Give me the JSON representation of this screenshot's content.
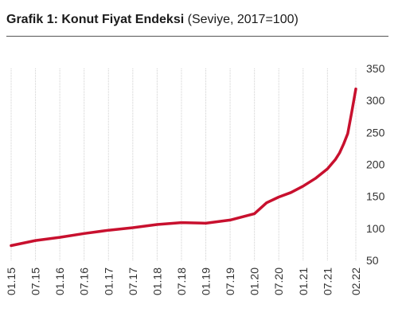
{
  "title": {
    "bold": "Grafik 1: Konut Fiyat Endeksi",
    "normal": "(Seviye, 2017=100)"
  },
  "colors": {
    "line": "#c8102e",
    "grid": "#cfcfcf",
    "rule": "#555555"
  },
  "chart_data": {
    "type": "line",
    "title": "Grafik 1: Konut Fiyat Endeksi (Seviye, 2017=100)",
    "xlabel": "",
    "ylabel": "",
    "y_axis_side": "right",
    "ylim": [
      50,
      350
    ],
    "yticks": [
      50,
      100,
      150,
      200,
      250,
      300,
      350
    ],
    "xticks": [
      "01.15",
      "07.15",
      "01.16",
      "07.16",
      "01.17",
      "07.17",
      "01.18",
      "07.18",
      "01.19",
      "07.19",
      "01.20",
      "07.20",
      "01.21",
      "07.21",
      "02.22"
    ],
    "grid": "vertical",
    "legend": "none",
    "series": [
      {
        "x": [
          "01.15",
          "07.15",
          "01.16",
          "07.16",
          "01.17",
          "07.17",
          "01.18",
          "07.18",
          "01.19",
          "07.19",
          "01.20",
          "04.20",
          "07.20",
          "10.20",
          "01.21",
          "04.21",
          "07.21",
          "09.21",
          "10.21",
          "11.21",
          "12.21",
          "01.22",
          "02.22"
        ],
        "values": [
          73,
          81,
          86,
          92,
          97,
          101,
          106,
          109,
          108,
          113,
          123,
          140,
          149,
          156,
          166,
          178,
          193,
          208,
          218,
          232,
          248,
          282,
          318
        ]
      }
    ]
  }
}
